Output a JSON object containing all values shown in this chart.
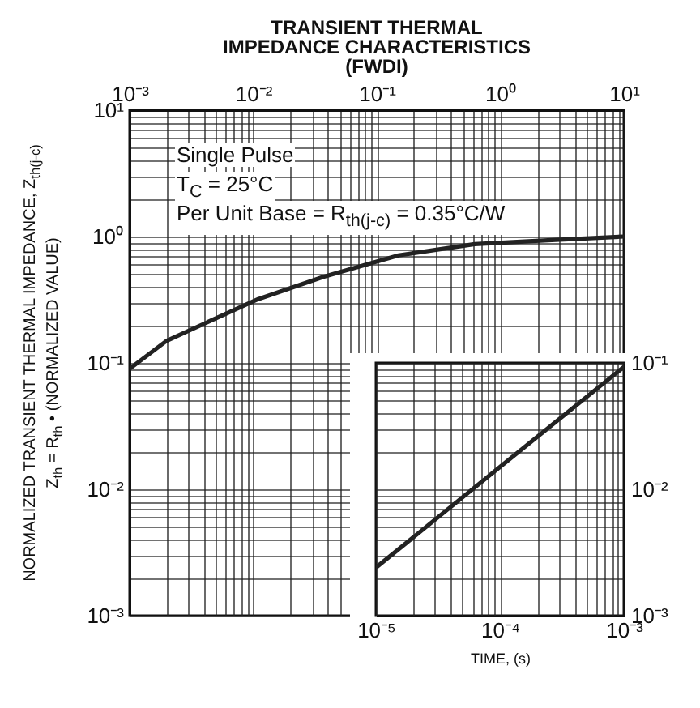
{
  "chart_data": [
    {
      "type": "line",
      "title": "TRANSIENT THERMAL\nIMPEDANCE CHARACTERISTICS\n(FWDI)",
      "ylabel": "NORMALIZED TRANSIENT THERMAL IMPEDANCE, Z$_{th(j-c)}$\nZ$_{th}$ = R$_{th}$ • (NORMALIZED VALUE)",
      "log": "xy",
      "grid": true,
      "xlim": [
        0.001,
        10
      ],
      "xticks": [
        {
          "value": 0.001,
          "label": "10⁻³"
        },
        {
          "value": 0.01,
          "label": "10⁻²"
        },
        {
          "value": 0.1,
          "label": "10⁻¹"
        },
        {
          "value": 1,
          "label": "10⁰"
        },
        {
          "value": 10,
          "label": "10¹"
        }
      ],
      "ylim": [
        0.001,
        10
      ],
      "yticks": [
        {
          "value": 0.001,
          "label": "10⁻³"
        },
        {
          "value": 0.01,
          "label": "10⁻²"
        },
        {
          "value": 0.1,
          "label": "10⁻¹"
        },
        {
          "value": 1,
          "label": "10⁰"
        },
        {
          "value": 10,
          "label": "10¹"
        }
      ],
      "annotations": [
        "Single Pulse",
        "T$_{C}$ = 25°C",
        "Per Unit Base = R$_{th(j-c)}$ = 0.35°C/W"
      ],
      "series": [
        {
          "color": "#222222",
          "x": [
            0.001,
            0.002,
            0.011,
            0.037,
            0.15,
            0.62,
            2.8,
            10
          ],
          "values": [
            0.09,
            0.15,
            0.32,
            0.48,
            0.71,
            0.87,
            0.94,
            1.0
          ]
        }
      ]
    },
    {
      "type": "line",
      "xlabel": "TIME, (s)",
      "log": "xy",
      "grid": true,
      "xlim": [
        1e-05,
        0.001
      ],
      "xticks": [
        {
          "value": 1e-05,
          "label": "10⁻⁵"
        },
        {
          "value": 0.0001,
          "label": "10⁻⁴"
        },
        {
          "value": 0.001,
          "label": "10⁻³"
        }
      ],
      "ylim": [
        0.001,
        0.1
      ],
      "yticks": [
        {
          "value": 0.001,
          "label": "10⁻³"
        },
        {
          "value": 0.01,
          "label": "10⁻²"
        },
        {
          "value": 0.1,
          "label": "10⁻¹"
        }
      ],
      "series": [
        {
          "color": "#222222",
          "x": [
            1e-05,
            0.0001,
            0.001
          ],
          "values": [
            0.0024,
            0.015,
            0.093
          ]
        }
      ]
    }
  ]
}
